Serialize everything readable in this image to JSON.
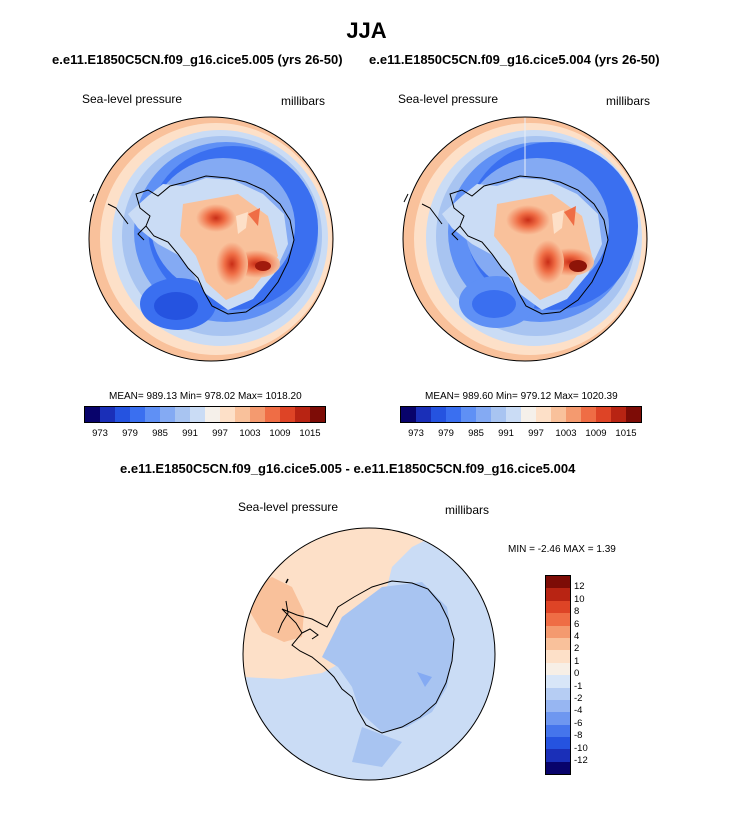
{
  "season_title": "JJA",
  "left_panel": {
    "title": "e.e11.E1850C5CN.f09_g16.cice5.005 (yrs 26-50)",
    "var_label": "Sea-level pressure",
    "units": "millibars",
    "stats": "MEAN= 989.13  Min= 978.02  Max= 1018.20"
  },
  "right_panel": {
    "title": "e.e11.E1850C5CN.f09_g16.cice5.004 (yrs 26-50)",
    "var_label": "Sea-level pressure",
    "units": "millibars",
    "stats": "MEAN= 989.60  Min= 979.12  Max= 1020.39"
  },
  "diff_panel": {
    "title": "e.e11.E1850C5CN.f09_g16.cice5.005 - e.e11.E1850C5CN.f09_g16.cice5.004",
    "var_label": "Sea-level pressure",
    "units": "millibars",
    "stats": "MIN =  -2.46 MAX =   1.39"
  },
  "chart_data": [
    {
      "type": "heatmap",
      "projection": "south-polar-stereographic",
      "title": "e.e11.E1850C5CN.f09_g16.cice5.005 (yrs 26-50)",
      "variable": "Sea-level pressure",
      "units": "millibars",
      "mean": 989.13,
      "min": 978.02,
      "max": 1018.2,
      "colorbar_ticks": [
        "973",
        "979",
        "985",
        "991",
        "997",
        "1003",
        "1009",
        "1015"
      ],
      "colorbar_colors": [
        "#08036b",
        "#1a2fb8",
        "#2553e0",
        "#3a6ff0",
        "#5f90f5",
        "#84aaf3",
        "#a8c4f1",
        "#cadcf5",
        "#f5f0ea",
        "#fde0c8",
        "#f9c19b",
        "#f49a6f",
        "#ef6d45",
        "#de4426",
        "#b82413",
        "#7d0c06"
      ],
      "legend": "bottom"
    },
    {
      "type": "heatmap",
      "projection": "south-polar-stereographic",
      "title": "e.e11.E1850C5CN.f09_g16.cice5.004 (yrs 26-50)",
      "variable": "Sea-level pressure",
      "units": "millibars",
      "mean": 989.6,
      "min": 979.12,
      "max": 1020.39,
      "colorbar_ticks": [
        "973",
        "979",
        "985",
        "991",
        "997",
        "1003",
        "1009",
        "1015"
      ],
      "colorbar_colors": [
        "#08036b",
        "#1a2fb8",
        "#2553e0",
        "#3a6ff0",
        "#5f90f5",
        "#84aaf3",
        "#a8c4f1",
        "#cadcf5",
        "#f5f0ea",
        "#fde0c8",
        "#f9c19b",
        "#f49a6f",
        "#ef6d45",
        "#de4426",
        "#b82413",
        "#7d0c06"
      ],
      "legend": "bottom"
    },
    {
      "type": "heatmap",
      "projection": "south-polar-stereographic",
      "title": "e.e11.E1850C5CN.f09_g16.cice5.005 - e.e11.E1850C5CN.f09_g16.cice5.004",
      "variable": "Sea-level pressure",
      "units": "millibars",
      "min": -2.46,
      "max": 1.39,
      "colorbar_ticks": [
        "12",
        "10",
        "8",
        "6",
        "4",
        "2",
        "1",
        "0",
        "-1",
        "-2",
        "-4",
        "-6",
        "-8",
        "-10",
        "-12"
      ],
      "colorbar_colors": [
        "#7d0c06",
        "#b82413",
        "#de4426",
        "#ef6d45",
        "#f49a6f",
        "#f9c19b",
        "#fde0c8",
        "#f7efe6",
        "#d8e6f8",
        "#b6cdf3",
        "#97b6f2",
        "#6e97f0",
        "#4575ec",
        "#2553e0",
        "#1a2fb8",
        "#08036b"
      ],
      "legend": "right"
    }
  ]
}
